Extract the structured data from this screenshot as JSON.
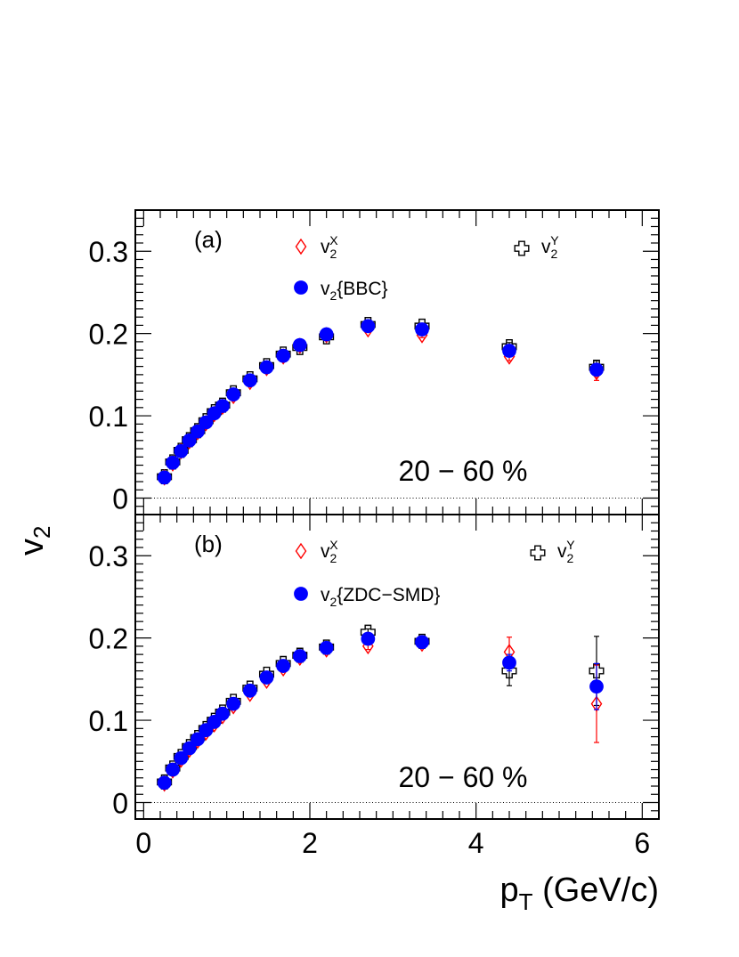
{
  "figure": {
    "ylabel_main": "v",
    "ylabel_sub": "2",
    "xlabel_main": "p",
    "xlabel_sub": "T",
    "xlabel_unit": " (GeV/c)",
    "x_ticks": [
      "0",
      "2",
      "4",
      "6"
    ],
    "y_ticks": [
      "0",
      "0.1",
      "0.2",
      "0.3"
    ]
  },
  "colors": {
    "vx": "#ff0000",
    "vy": "#000000",
    "filled": "#0000ff"
  },
  "chart_data": [
    {
      "type": "scatter",
      "panel_label": "(a)",
      "centrality_label": "20 − 60 %",
      "xlim": [
        -0.1,
        6.2
      ],
      "ylim": [
        -0.02,
        0.35
      ],
      "legend": {
        "vx": {
          "main": "v",
          "sub": "2",
          "sup": "X"
        },
        "vy": {
          "main": "v",
          "sub": "2",
          "sup": "Y"
        },
        "filled": {
          "main": "v",
          "sub": "2",
          "suffix": "{BBC}"
        }
      },
      "x": [
        0.25,
        0.35,
        0.45,
        0.55,
        0.65,
        0.75,
        0.85,
        0.95,
        1.08,
        1.28,
        1.48,
        1.68,
        1.88,
        2.2,
        2.7,
        3.35,
        4.4,
        5.45
      ],
      "series": [
        {
          "key": "vx",
          "marker": "diamond-open",
          "y": [
            0.025,
            0.042,
            0.057,
            0.069,
            0.08,
            0.091,
            0.102,
            0.111,
            0.124,
            0.141,
            0.158,
            0.172,
            0.185,
            0.198,
            0.205,
            0.198,
            0.172,
            0.153
          ],
          "err": [
            0.002,
            0.002,
            0.002,
            0.002,
            0.002,
            0.002,
            0.002,
            0.002,
            0.002,
            0.002,
            0.002,
            0.002,
            0.002,
            0.002,
            0.003,
            0.003,
            0.005,
            0.01
          ]
        },
        {
          "key": "vy",
          "marker": "cross-open",
          "y": [
            0.026,
            0.044,
            0.058,
            0.071,
            0.082,
            0.094,
            0.105,
            0.113,
            0.128,
            0.145,
            0.161,
            0.175,
            0.183,
            0.196,
            0.211,
            0.209,
            0.184,
            0.159
          ],
          "err": [
            0.002,
            0.002,
            0.002,
            0.002,
            0.002,
            0.002,
            0.002,
            0.002,
            0.002,
            0.002,
            0.002,
            0.002,
            0.002,
            0.002,
            0.003,
            0.003,
            0.005,
            0.008
          ]
        },
        {
          "key": "filled",
          "marker": "circle-filled",
          "y": [
            0.025,
            0.043,
            0.057,
            0.07,
            0.081,
            0.092,
            0.103,
            0.112,
            0.126,
            0.143,
            0.159,
            0.173,
            0.186,
            0.199,
            0.209,
            0.205,
            0.179,
            0.156
          ],
          "err": [
            0.001,
            0.001,
            0.001,
            0.001,
            0.001,
            0.001,
            0.001,
            0.001,
            0.001,
            0.001,
            0.001,
            0.001,
            0.001,
            0.001,
            0.002,
            0.002,
            0.003,
            0.005
          ]
        }
      ]
    },
    {
      "type": "scatter",
      "panel_label": "(b)",
      "centrality_label": "20 − 60 %",
      "xlim": [
        -0.1,
        6.2
      ],
      "ylim": [
        -0.02,
        0.35
      ],
      "legend": {
        "vx": {
          "main": "v",
          "sub": "2",
          "sup": "X"
        },
        "vy": {
          "main": "v",
          "sub": "2",
          "sup": "Y"
        },
        "filled": {
          "main": "v",
          "sub": "2",
          "suffix": "{ZDC−SMD}"
        }
      },
      "x": [
        0.25,
        0.35,
        0.45,
        0.55,
        0.65,
        0.75,
        0.85,
        0.95,
        1.08,
        1.28,
        1.48,
        1.68,
        1.88,
        2.2,
        2.7,
        3.35,
        4.4,
        5.45
      ],
      "series": [
        {
          "key": "vx",
          "marker": "diamond-open",
          "y": [
            0.023,
            0.039,
            0.052,
            0.064,
            0.075,
            0.085,
            0.095,
            0.105,
            0.117,
            0.132,
            0.148,
            0.163,
            0.176,
            0.186,
            0.19,
            0.193,
            0.183,
            0.12
          ],
          "err": [
            0.002,
            0.002,
            0.002,
            0.002,
            0.002,
            0.002,
            0.002,
            0.002,
            0.002,
            0.002,
            0.002,
            0.002,
            0.002,
            0.002,
            0.004,
            0.005,
            0.018,
            0.047
          ]
        },
        {
          "key": "vy",
          "marker": "cross-open",
          "y": [
            0.025,
            0.042,
            0.056,
            0.068,
            0.079,
            0.09,
            0.1,
            0.11,
            0.123,
            0.139,
            0.156,
            0.169,
            0.179,
            0.189,
            0.207,
            0.196,
            0.16,
            0.16
          ],
          "err": [
            0.002,
            0.002,
            0.002,
            0.002,
            0.002,
            0.002,
            0.002,
            0.002,
            0.002,
            0.002,
            0.002,
            0.002,
            0.002,
            0.002,
            0.004,
            0.005,
            0.018,
            0.042
          ]
        },
        {
          "key": "filled",
          "marker": "circle-filled",
          "y": [
            0.024,
            0.04,
            0.054,
            0.066,
            0.077,
            0.088,
            0.098,
            0.108,
            0.12,
            0.136,
            0.152,
            0.166,
            0.178,
            0.188,
            0.199,
            0.195,
            0.17,
            0.141
          ],
          "err": [
            0.001,
            0.001,
            0.001,
            0.001,
            0.001,
            0.001,
            0.001,
            0.001,
            0.001,
            0.001,
            0.001,
            0.001,
            0.001,
            0.001,
            0.002,
            0.003,
            0.01,
            0.028
          ]
        }
      ]
    }
  ]
}
